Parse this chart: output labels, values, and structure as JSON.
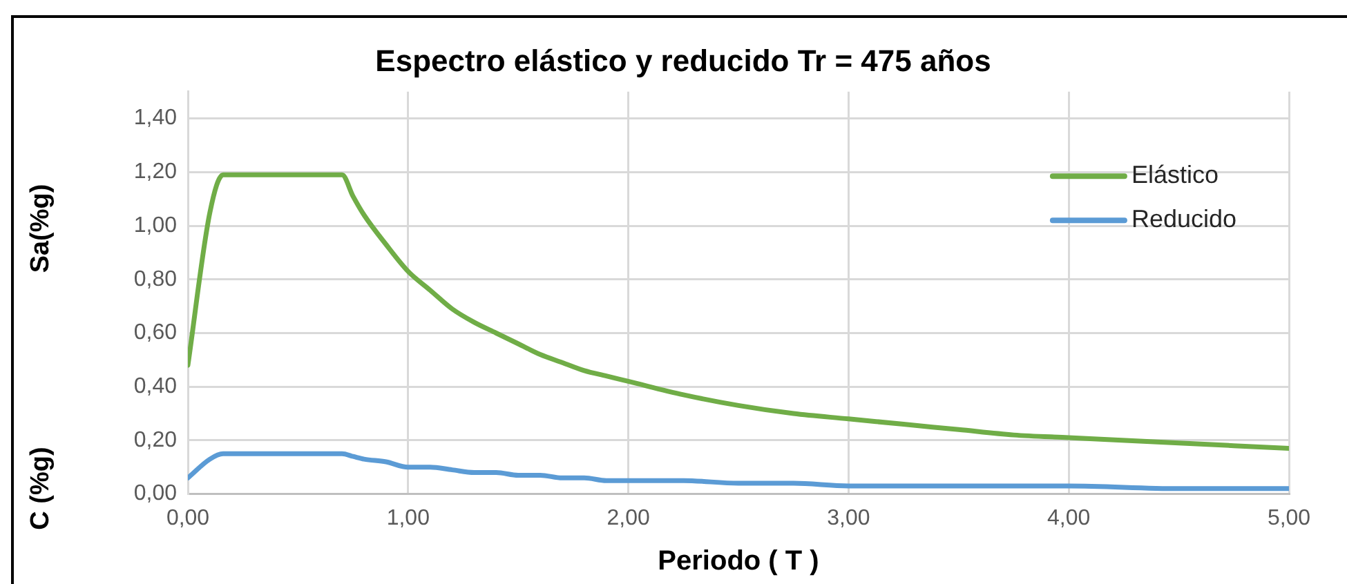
{
  "chart_data": {
    "type": "line",
    "title": "Espectro elástico y reducido Tr = 475 años",
    "xlabel": "Periodo ( T )",
    "ylabel": "Sa(%g)",
    "annotations": [
      "C (%g)"
    ],
    "x": [
      0,
      0.1,
      0.16,
      0.7,
      0.75,
      0.8,
      0.9,
      1.0,
      1.1,
      1.2,
      1.3,
      1.4,
      1.5,
      1.6,
      1.7,
      1.8,
      1.9,
      2.0,
      2.25,
      2.5,
      2.75,
      3.0,
      3.25,
      3.5,
      3.75,
      4.0,
      4.5,
      5.0
    ],
    "series": [
      {
        "name": "Elástico",
        "color": "#70ad47",
        "values": [
          0.48,
          1.05,
          1.19,
          1.19,
          1.11,
          1.04,
          0.93,
          0.83,
          0.76,
          0.69,
          0.64,
          0.6,
          0.56,
          0.52,
          0.49,
          0.46,
          0.44,
          0.42,
          0.37,
          0.33,
          0.3,
          0.28,
          0.26,
          0.24,
          0.22,
          0.21,
          0.19,
          0.17
        ]
      },
      {
        "name": "Reducido",
        "color": "#5b9bd5",
        "values": [
          0.06,
          0.13,
          0.15,
          0.15,
          0.14,
          0.13,
          0.12,
          0.1,
          0.1,
          0.09,
          0.08,
          0.08,
          0.07,
          0.07,
          0.06,
          0.06,
          0.05,
          0.05,
          0.05,
          0.04,
          0.04,
          0.03,
          0.03,
          0.03,
          0.03,
          0.03,
          0.02,
          0.02
        ]
      }
    ],
    "xlim": [
      0,
      5
    ],
    "xticks": [
      {
        "value": 0,
        "label": "0,00"
      },
      {
        "value": 1,
        "label": "1,00"
      },
      {
        "value": 2,
        "label": "2,00"
      },
      {
        "value": 3,
        "label": "3,00"
      },
      {
        "value": 4,
        "label": "4,00"
      },
      {
        "value": 5,
        "label": "5,00"
      }
    ],
    "ylim": [
      0,
      1.5
    ],
    "yticks": [
      {
        "value": 0,
        "label": "0,00"
      },
      {
        "value": 0.2,
        "label": "0,20"
      },
      {
        "value": 0.4,
        "label": "0,40"
      },
      {
        "value": 0.6,
        "label": "0,60"
      },
      {
        "value": 0.8,
        "label": "0,80"
      },
      {
        "value": 1.0,
        "label": "1,00"
      },
      {
        "value": 1.2,
        "label": "1,20"
      },
      {
        "value": 1.4,
        "label": "1,40"
      }
    ],
    "grid": true,
    "legend": "right",
    "marker": "none",
    "line_style": "solid"
  }
}
